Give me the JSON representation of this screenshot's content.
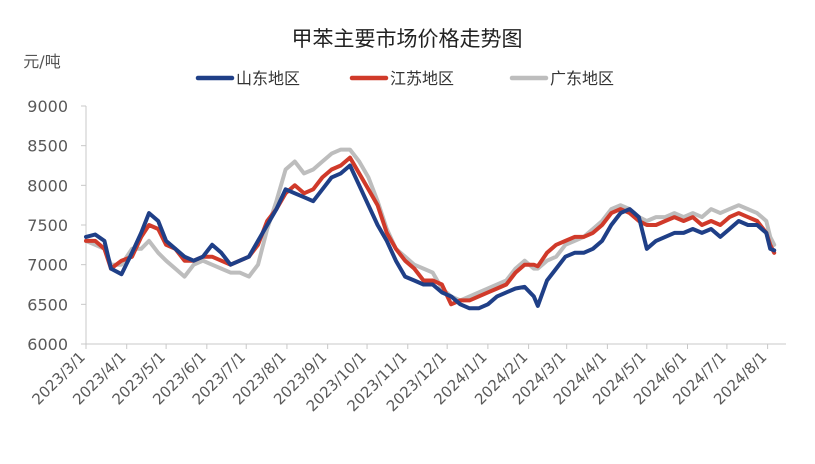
{
  "chart_data": {
    "type": "line",
    "title": "甲苯主要市场价格走势图",
    "ylabel": "元/吨",
    "xlabel": "",
    "ylim": [
      6000,
      9000
    ],
    "yticks": [
      6000,
      6500,
      7000,
      7500,
      8000,
      8500,
      9000
    ],
    "xlim": [
      "2023-03-01",
      "2024-08-15"
    ],
    "xticks": [
      "2023/3/1",
      "2023/4/1",
      "2023/5/1",
      "2023/6/1",
      "2023/7/1",
      "2023/8/1",
      "2023/9/1",
      "2023/10/1",
      "2023/11/1",
      "2023/12/1",
      "2024/1/1",
      "2024/2/1",
      "2024/3/1",
      "2024/4/1",
      "2024/5/1",
      "2024/6/1",
      "2024/7/1",
      "2024/8/1"
    ],
    "grid": false,
    "legend_position": "top-center",
    "series": [
      {
        "name": "山东地区",
        "color": "#1f3f87",
        "points": [
          [
            "2023-03-01",
            7350
          ],
          [
            "2023-03-08",
            7380
          ],
          [
            "2023-03-15",
            7300
          ],
          [
            "2023-03-20",
            6950
          ],
          [
            "2023-03-28",
            6880
          ],
          [
            "2023-04-05",
            7150
          ],
          [
            "2023-04-12",
            7400
          ],
          [
            "2023-04-18",
            7650
          ],
          [
            "2023-04-25",
            7550
          ],
          [
            "2023-05-01",
            7300
          ],
          [
            "2023-05-08",
            7200
          ],
          [
            "2023-05-15",
            7100
          ],
          [
            "2023-05-22",
            7050
          ],
          [
            "2023-05-29",
            7100
          ],
          [
            "2023-06-05",
            7250
          ],
          [
            "2023-06-12",
            7150
          ],
          [
            "2023-06-19",
            7000
          ],
          [
            "2023-06-26",
            7050
          ],
          [
            "2023-07-03",
            7100
          ],
          [
            "2023-07-10",
            7300
          ],
          [
            "2023-07-17",
            7500
          ],
          [
            "2023-07-24",
            7700
          ],
          [
            "2023-07-31",
            7950
          ],
          [
            "2023-08-07",
            7900
          ],
          [
            "2023-08-14",
            7850
          ],
          [
            "2023-08-21",
            7800
          ],
          [
            "2023-08-28",
            7950
          ],
          [
            "2023-09-04",
            8100
          ],
          [
            "2023-09-11",
            8150
          ],
          [
            "2023-09-18",
            8250
          ],
          [
            "2023-09-25",
            8000
          ],
          [
            "2023-10-02",
            7750
          ],
          [
            "2023-10-09",
            7500
          ],
          [
            "2023-10-16",
            7300
          ],
          [
            "2023-10-23",
            7050
          ],
          [
            "2023-10-30",
            6850
          ],
          [
            "2023-11-06",
            6800
          ],
          [
            "2023-11-13",
            6750
          ],
          [
            "2023-11-20",
            6750
          ],
          [
            "2023-11-27",
            6650
          ],
          [
            "2023-12-04",
            6600
          ],
          [
            "2023-12-11",
            6500
          ],
          [
            "2023-12-18",
            6450
          ],
          [
            "2023-12-25",
            6450
          ],
          [
            "2024-01-01",
            6500
          ],
          [
            "2024-01-08",
            6600
          ],
          [
            "2024-01-15",
            6650
          ],
          [
            "2024-01-22",
            6700
          ],
          [
            "2024-01-29",
            6720
          ],
          [
            "2024-02-05",
            6600
          ],
          [
            "2024-02-08",
            6480
          ],
          [
            "2024-02-15",
            6800
          ],
          [
            "2024-02-22",
            6950
          ],
          [
            "2024-02-29",
            7100
          ],
          [
            "2024-03-07",
            7150
          ],
          [
            "2024-03-14",
            7150
          ],
          [
            "2024-03-21",
            7200
          ],
          [
            "2024-03-28",
            7300
          ],
          [
            "2024-04-04",
            7500
          ],
          [
            "2024-04-11",
            7650
          ],
          [
            "2024-04-18",
            7700
          ],
          [
            "2024-04-25",
            7600
          ],
          [
            "2024-05-01",
            7200
          ],
          [
            "2024-05-08",
            7300
          ],
          [
            "2024-05-15",
            7350
          ],
          [
            "2024-05-22",
            7400
          ],
          [
            "2024-05-29",
            7400
          ],
          [
            "2024-06-05",
            7450
          ],
          [
            "2024-06-12",
            7400
          ],
          [
            "2024-06-19",
            7450
          ],
          [
            "2024-06-26",
            7350
          ],
          [
            "2024-07-03",
            7450
          ],
          [
            "2024-07-10",
            7550
          ],
          [
            "2024-07-17",
            7500
          ],
          [
            "2024-07-24",
            7500
          ],
          [
            "2024-07-31",
            7400
          ],
          [
            "2024-08-03",
            7200
          ],
          [
            "2024-08-06",
            7180
          ]
        ]
      },
      {
        "name": "江苏地区",
        "color": "#d03a2a",
        "points": [
          [
            "2023-03-01",
            7300
          ],
          [
            "2023-03-08",
            7300
          ],
          [
            "2023-03-15",
            7200
          ],
          [
            "2023-03-20",
            6950
          ],
          [
            "2023-03-28",
            7050
          ],
          [
            "2023-04-05",
            7100
          ],
          [
            "2023-04-12",
            7350
          ],
          [
            "2023-04-18",
            7500
          ],
          [
            "2023-04-25",
            7450
          ],
          [
            "2023-05-01",
            7250
          ],
          [
            "2023-05-08",
            7200
          ],
          [
            "2023-05-15",
            7050
          ],
          [
            "2023-05-22",
            7050
          ],
          [
            "2023-05-29",
            7100
          ],
          [
            "2023-06-05",
            7100
          ],
          [
            "2023-06-12",
            7050
          ],
          [
            "2023-06-19",
            7000
          ],
          [
            "2023-06-26",
            7050
          ],
          [
            "2023-07-03",
            7100
          ],
          [
            "2023-07-10",
            7250
          ],
          [
            "2023-07-17",
            7550
          ],
          [
            "2023-07-24",
            7700
          ],
          [
            "2023-07-31",
            7900
          ],
          [
            "2023-08-07",
            8000
          ],
          [
            "2023-08-14",
            7900
          ],
          [
            "2023-08-21",
            7950
          ],
          [
            "2023-08-28",
            8100
          ],
          [
            "2023-09-04",
            8200
          ],
          [
            "2023-09-11",
            8250
          ],
          [
            "2023-09-18",
            8350
          ],
          [
            "2023-09-25",
            8150
          ],
          [
            "2023-10-02",
            7950
          ],
          [
            "2023-10-09",
            7750
          ],
          [
            "2023-10-16",
            7400
          ],
          [
            "2023-10-23",
            7200
          ],
          [
            "2023-10-30",
            7050
          ],
          [
            "2023-11-06",
            6950
          ],
          [
            "2023-11-13",
            6800
          ],
          [
            "2023-11-20",
            6800
          ],
          [
            "2023-11-27",
            6750
          ],
          [
            "2023-12-04",
            6500
          ],
          [
            "2023-12-11",
            6550
          ],
          [
            "2023-12-18",
            6550
          ],
          [
            "2023-12-25",
            6600
          ],
          [
            "2024-01-01",
            6650
          ],
          [
            "2024-01-08",
            6700
          ],
          [
            "2024-01-15",
            6750
          ],
          [
            "2024-01-22",
            6900
          ],
          [
            "2024-01-29",
            7000
          ],
          [
            "2024-02-05",
            7000
          ],
          [
            "2024-02-08",
            6980
          ],
          [
            "2024-02-15",
            7150
          ],
          [
            "2024-02-22",
            7250
          ],
          [
            "2024-02-29",
            7300
          ],
          [
            "2024-03-07",
            7350
          ],
          [
            "2024-03-14",
            7350
          ],
          [
            "2024-03-21",
            7400
          ],
          [
            "2024-03-28",
            7500
          ],
          [
            "2024-04-04",
            7650
          ],
          [
            "2024-04-11",
            7700
          ],
          [
            "2024-04-18",
            7650
          ],
          [
            "2024-04-25",
            7550
          ],
          [
            "2024-05-01",
            7500
          ],
          [
            "2024-05-08",
            7500
          ],
          [
            "2024-05-15",
            7550
          ],
          [
            "2024-05-22",
            7600
          ],
          [
            "2024-05-29",
            7550
          ],
          [
            "2024-06-05",
            7600
          ],
          [
            "2024-06-12",
            7500
          ],
          [
            "2024-06-19",
            7550
          ],
          [
            "2024-06-26",
            7500
          ],
          [
            "2024-07-03",
            7600
          ],
          [
            "2024-07-10",
            7650
          ],
          [
            "2024-07-17",
            7600
          ],
          [
            "2024-07-24",
            7550
          ],
          [
            "2024-07-31",
            7400
          ],
          [
            "2024-08-03",
            7250
          ],
          [
            "2024-08-06",
            7150
          ]
        ]
      },
      {
        "name": "广东地区",
        "color": "#bdbdbd",
        "points": [
          [
            "2023-03-01",
            7300
          ],
          [
            "2023-03-08",
            7250
          ],
          [
            "2023-03-15",
            7200
          ],
          [
            "2023-03-20",
            7000
          ],
          [
            "2023-03-28",
            7000
          ],
          [
            "2023-04-05",
            7200
          ],
          [
            "2023-04-12",
            7200
          ],
          [
            "2023-04-18",
            7300
          ],
          [
            "2023-04-25",
            7150
          ],
          [
            "2023-05-01",
            7050
          ],
          [
            "2023-05-08",
            6950
          ],
          [
            "2023-05-15",
            6850
          ],
          [
            "2023-05-22",
            7000
          ],
          [
            "2023-05-29",
            7050
          ],
          [
            "2023-06-05",
            7000
          ],
          [
            "2023-06-12",
            6950
          ],
          [
            "2023-06-19",
            6900
          ],
          [
            "2023-06-26",
            6900
          ],
          [
            "2023-07-03",
            6850
          ],
          [
            "2023-07-10",
            7000
          ],
          [
            "2023-07-17",
            7450
          ],
          [
            "2023-07-24",
            7800
          ],
          [
            "2023-07-31",
            8200
          ],
          [
            "2023-08-07",
            8300
          ],
          [
            "2023-08-14",
            8150
          ],
          [
            "2023-08-21",
            8200
          ],
          [
            "2023-08-28",
            8300
          ],
          [
            "2023-09-04",
            8400
          ],
          [
            "2023-09-11",
            8450
          ],
          [
            "2023-09-18",
            8450
          ],
          [
            "2023-09-25",
            8300
          ],
          [
            "2023-10-02",
            8100
          ],
          [
            "2023-10-09",
            7800
          ],
          [
            "2023-10-16",
            7450
          ],
          [
            "2023-10-23",
            7200
          ],
          [
            "2023-10-30",
            7100
          ],
          [
            "2023-11-06",
            7000
          ],
          [
            "2023-11-13",
            6950
          ],
          [
            "2023-11-20",
            6900
          ],
          [
            "2023-11-27",
            6700
          ],
          [
            "2023-12-04",
            6600
          ],
          [
            "2023-12-11",
            6550
          ],
          [
            "2023-12-18",
            6600
          ],
          [
            "2023-12-25",
            6650
          ],
          [
            "2024-01-01",
            6700
          ],
          [
            "2024-01-08",
            6750
          ],
          [
            "2024-01-15",
            6800
          ],
          [
            "2024-01-22",
            6950
          ],
          [
            "2024-01-29",
            7050
          ],
          [
            "2024-02-05",
            6950
          ],
          [
            "2024-02-08",
            6950
          ],
          [
            "2024-02-15",
            7050
          ],
          [
            "2024-02-22",
            7100
          ],
          [
            "2024-02-29",
            7250
          ],
          [
            "2024-03-07",
            7300
          ],
          [
            "2024-03-14",
            7350
          ],
          [
            "2024-03-21",
            7450
          ],
          [
            "2024-03-28",
            7550
          ],
          [
            "2024-04-04",
            7700
          ],
          [
            "2024-04-11",
            7750
          ],
          [
            "2024-04-18",
            7700
          ],
          [
            "2024-04-25",
            7600
          ],
          [
            "2024-05-01",
            7550
          ],
          [
            "2024-05-08",
            7600
          ],
          [
            "2024-05-15",
            7600
          ],
          [
            "2024-05-22",
            7650
          ],
          [
            "2024-05-29",
            7600
          ],
          [
            "2024-06-05",
            7650
          ],
          [
            "2024-06-12",
            7600
          ],
          [
            "2024-06-19",
            7700
          ],
          [
            "2024-06-26",
            7650
          ],
          [
            "2024-07-03",
            7700
          ],
          [
            "2024-07-10",
            7750
          ],
          [
            "2024-07-17",
            7700
          ],
          [
            "2024-07-24",
            7650
          ],
          [
            "2024-07-31",
            7550
          ],
          [
            "2024-08-03",
            7350
          ],
          [
            "2024-08-06",
            7250
          ]
        ]
      }
    ]
  }
}
